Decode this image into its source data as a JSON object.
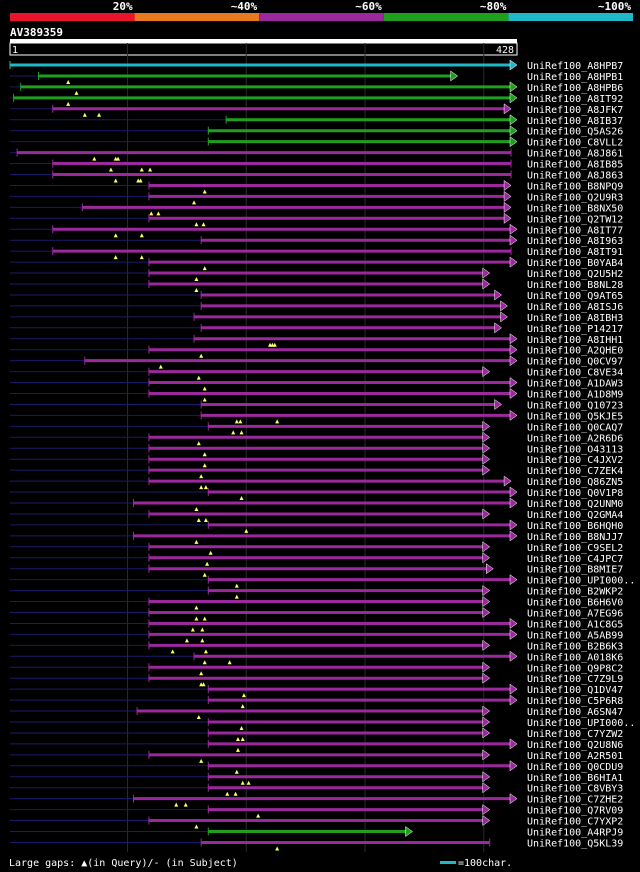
{
  "chart_data": {
    "type": "alignment-overview",
    "query_id": "AV389359",
    "query_start": "1",
    "query_end": "428",
    "query_length": 428,
    "identity_scale": [
      {
        "label": "20%",
        "color": "#e8142a"
      },
      {
        "label": "~40%",
        "color": "#e8791e"
      },
      {
        "label": "~60%",
        "color": "#9c289e"
      },
      {
        "label": "~80%",
        "color": "#1ea01e"
      },
      {
        "label": "~100%",
        "color": "#1eb8c8"
      }
    ],
    "legend": {
      "text": "Large gaps: ▲(in Query)/- (in Subject)",
      "scale_label": "=100char.",
      "scale_chars": 100
    },
    "hits": [
      {
        "name": "UniRef100_A8HPB7",
        "start": 1,
        "end": 428,
        "color": "#1eb8c8",
        "arrow": true,
        "markers": []
      },
      {
        "name": "UniRef100_A8HPB1",
        "start": 25,
        "end": 378,
        "color": "#1ea01e",
        "arrow": true,
        "markers": [
          50
        ]
      },
      {
        "name": "UniRef100_A8HPB6",
        "start": 10,
        "end": 428,
        "color": "#1ea01e",
        "arrow": true,
        "markers": [
          57
        ]
      },
      {
        "name": "UniRef100_A8IT92",
        "start": 4,
        "end": 428,
        "color": "#1ea01e",
        "arrow": true,
        "markers": [
          50
        ]
      },
      {
        "name": "UniRef100_A8JFK7",
        "start": 37,
        "end": 423,
        "color": "#9c289e",
        "arrow": true,
        "markers": [
          64,
          76
        ]
      },
      {
        "name": "UniRef100_A8IB37",
        "start": 183,
        "end": 428,
        "color": "#1ea01e",
        "arrow": true,
        "markers": []
      },
      {
        "name": "UniRef100_Q5AS26",
        "start": 168,
        "end": 428,
        "color": "#1ea01e",
        "arrow": true,
        "markers": []
      },
      {
        "name": "UniRef100_C8VLL2",
        "start": 168,
        "end": 428,
        "color": "#1ea01e",
        "arrow": true,
        "markers": []
      },
      {
        "name": "UniRef100_A8J861",
        "start": 7,
        "end": 423,
        "color": "#9c289e",
        "arrow": false,
        "markers": [
          72,
          90,
          92
        ]
      },
      {
        "name": "UniRef100_A8IB85",
        "start": 37,
        "end": 423,
        "color": "#9c289e",
        "arrow": false,
        "markers": [
          86,
          112,
          119
        ]
      },
      {
        "name": "UniRef100_A8J863",
        "start": 37,
        "end": 423,
        "color": "#9c289e",
        "arrow": false,
        "markers": [
          90,
          109,
          111
        ]
      },
      {
        "name": "UniRef100_B8NPQ9",
        "start": 118,
        "end": 423,
        "color": "#9c289e",
        "arrow": true,
        "markers": [
          165
        ]
      },
      {
        "name": "UniRef100_Q2U9R3",
        "start": 118,
        "end": 423,
        "color": "#9c289e",
        "arrow": true,
        "markers": [
          156
        ]
      },
      {
        "name": "UniRef100_B8NX50",
        "start": 62,
        "end": 423,
        "color": "#9c289e",
        "arrow": true,
        "markers": [
          120,
          126
        ]
      },
      {
        "name": "UniRef100_Q2TW12",
        "start": 118,
        "end": 423,
        "color": "#9c289e",
        "arrow": true,
        "markers": [
          158,
          164
        ]
      },
      {
        "name": "UniRef100_A8IT77",
        "start": 37,
        "end": 428,
        "color": "#9c289e",
        "arrow": true,
        "markers": [
          90,
          112
        ]
      },
      {
        "name": "UniRef100_A8I963",
        "start": 162,
        "end": 428,
        "color": "#9c289e",
        "arrow": true,
        "markers": []
      },
      {
        "name": "UniRef100_A8IT91",
        "start": 37,
        "end": 423,
        "color": "#9c289e",
        "arrow": false,
        "markers": [
          90,
          112
        ]
      },
      {
        "name": "UniRef100_B0YAB4",
        "start": 118,
        "end": 428,
        "color": "#9c289e",
        "arrow": true,
        "markers": [
          165
        ]
      },
      {
        "name": "UniRef100_Q2U5H2",
        "start": 118,
        "end": 405,
        "color": "#9c289e",
        "arrow": true,
        "markers": [
          158
        ]
      },
      {
        "name": "UniRef100_B8NL28",
        "start": 118,
        "end": 405,
        "color": "#9c289e",
        "arrow": true,
        "markers": [
          158
        ]
      },
      {
        "name": "UniRef100_Q9AT65",
        "start": 162,
        "end": 415,
        "color": "#9c289e",
        "arrow": true,
        "markers": []
      },
      {
        "name": "UniRef100_A8ISJ6",
        "start": 162,
        "end": 420,
        "color": "#9c289e",
        "arrow": true,
        "markers": []
      },
      {
        "name": "UniRef100_A8IBH3",
        "start": 156,
        "end": 420,
        "color": "#9c289e",
        "arrow": true,
        "markers": []
      },
      {
        "name": "UniRef100_P14217",
        "start": 162,
        "end": 415,
        "color": "#9c289e",
        "arrow": true,
        "markers": []
      },
      {
        "name": "UniRef100_A8IHH1",
        "start": 156,
        "end": 428,
        "color": "#9c289e",
        "arrow": true,
        "markers": [
          220,
          222,
          224
        ]
      },
      {
        "name": "UniRef100_A2QHE0",
        "start": 118,
        "end": 428,
        "color": "#9c289e",
        "arrow": true,
        "markers": [
          162
        ]
      },
      {
        "name": "UniRef100_Q0CV97",
        "start": 64,
        "end": 428,
        "color": "#9c289e",
        "arrow": true,
        "markers": [
          128
        ]
      },
      {
        "name": "UniRef100_C8VE34",
        "start": 118,
        "end": 405,
        "color": "#9c289e",
        "arrow": true,
        "markers": [
          160
        ]
      },
      {
        "name": "UniRef100_A1DAW3",
        "start": 118,
        "end": 428,
        "color": "#9c289e",
        "arrow": true,
        "markers": [
          165
        ]
      },
      {
        "name": "UniRef100_A1D8M9",
        "start": 118,
        "end": 428,
        "color": "#9c289e",
        "arrow": true,
        "markers": [
          165
        ]
      },
      {
        "name": "UniRef100_Q10723",
        "start": 162,
        "end": 415,
        "color": "#9c289e",
        "arrow": true,
        "markers": []
      },
      {
        "name": "UniRef100_Q5KJE5",
        "start": 162,
        "end": 428,
        "color": "#9c289e",
        "arrow": true,
        "markers": [
          192,
          195,
          226
        ]
      },
      {
        "name": "UniRef100_Q0CAQ7",
        "start": 168,
        "end": 405,
        "color": "#9c289e",
        "arrow": true,
        "markers": [
          189,
          196
        ]
      },
      {
        "name": "UniRef100_A2R6D6",
        "start": 118,
        "end": 405,
        "color": "#9c289e",
        "arrow": true,
        "markers": [
          160
        ]
      },
      {
        "name": "UniRef100_O43113",
        "start": 118,
        "end": 405,
        "color": "#9c289e",
        "arrow": true,
        "markers": [
          165
        ]
      },
      {
        "name": "UniRef100_C4JXV2",
        "start": 118,
        "end": 405,
        "color": "#9c289e",
        "arrow": true,
        "markers": [
          165
        ]
      },
      {
        "name": "UniRef100_C7ZEK4",
        "start": 118,
        "end": 405,
        "color": "#9c289e",
        "arrow": true,
        "markers": [
          162
        ]
      },
      {
        "name": "UniRef100_Q86ZN5",
        "start": 118,
        "end": 423,
        "color": "#9c289e",
        "arrow": true,
        "markers": [
          162,
          166
        ]
      },
      {
        "name": "UniRef100_Q0V1P8",
        "start": 168,
        "end": 428,
        "color": "#9c289e",
        "arrow": true,
        "markers": [
          196
        ]
      },
      {
        "name": "UniRef100_Q2UNM0",
        "start": 105,
        "end": 428,
        "color": "#9c289e",
        "arrow": true,
        "markers": [
          158
        ]
      },
      {
        "name": "UniRef100_Q2GMA4",
        "start": 118,
        "end": 405,
        "color": "#9c289e",
        "arrow": true,
        "markers": [
          160,
          166
        ]
      },
      {
        "name": "UniRef100_B6HQH0",
        "start": 168,
        "end": 428,
        "color": "#9c289e",
        "arrow": true,
        "markers": [
          200
        ]
      },
      {
        "name": "UniRef100_B8NJJ7",
        "start": 105,
        "end": 428,
        "color": "#9c289e",
        "arrow": true,
        "markers": [
          158
        ]
      },
      {
        "name": "UniRef100_C9SEL2",
        "start": 118,
        "end": 405,
        "color": "#9c289e",
        "arrow": true,
        "markers": [
          170
        ]
      },
      {
        "name": "UniRef100_C4JPC7",
        "start": 118,
        "end": 405,
        "color": "#9c289e",
        "arrow": true,
        "markers": [
          167
        ]
      },
      {
        "name": "UniRef100_B8MIE7",
        "start": 118,
        "end": 408,
        "color": "#9c289e",
        "arrow": true,
        "markers": [
          165
        ]
      },
      {
        "name": "UniRef100_UPI000..",
        "start": 168,
        "end": 428,
        "color": "#9c289e",
        "arrow": true,
        "markers": [
          192
        ]
      },
      {
        "name": "UniRef100_B2WKP2",
        "start": 168,
        "end": 405,
        "color": "#9c289e",
        "arrow": true,
        "markers": [
          192
        ]
      },
      {
        "name": "UniRef100_B6H6V0",
        "start": 118,
        "end": 405,
        "color": "#9c289e",
        "arrow": true,
        "markers": [
          158
        ]
      },
      {
        "name": "UniRef100_A7EG96",
        "start": 118,
        "end": 405,
        "color": "#9c289e",
        "arrow": true,
        "markers": [
          158,
          165
        ]
      },
      {
        "name": "UniRef100_A1C8G5",
        "start": 118,
        "end": 428,
        "color": "#9c289e",
        "arrow": true,
        "markers": [
          155,
          163
        ]
      },
      {
        "name": "UniRef100_A5AB99",
        "start": 118,
        "end": 428,
        "color": "#9c289e",
        "arrow": true,
        "markers": [
          150,
          163
        ]
      },
      {
        "name": "UniRef100_B2B6K3",
        "start": 118,
        "end": 405,
        "color": "#9c289e",
        "arrow": true,
        "markers": [
          138,
          166
        ]
      },
      {
        "name": "UniRef100_A018K6",
        "start": 156,
        "end": 428,
        "color": "#9c289e",
        "arrow": true,
        "markers": [
          165,
          186
        ]
      },
      {
        "name": "UniRef100_Q9P8C2",
        "start": 118,
        "end": 405,
        "color": "#9c289e",
        "arrow": true,
        "markers": [
          162
        ]
      },
      {
        "name": "UniRef100_C7Z9L9",
        "start": 118,
        "end": 405,
        "color": "#9c289e",
        "arrow": true,
        "markers": [
          162,
          164
        ]
      },
      {
        "name": "UniRef100_Q1DV47",
        "start": 168,
        "end": 428,
        "color": "#9c289e",
        "arrow": true,
        "markers": [
          198
        ]
      },
      {
        "name": "UniRef100_C5P6R8",
        "start": 168,
        "end": 428,
        "color": "#9c289e",
        "arrow": true,
        "markers": [
          197
        ]
      },
      {
        "name": "UniRef100_A6SN47",
        "start": 108,
        "end": 405,
        "color": "#9c289e",
        "arrow": true,
        "markers": [
          160
        ]
      },
      {
        "name": "UniRef100_UPI000..",
        "start": 168,
        "end": 405,
        "color": "#9c289e",
        "arrow": true,
        "markers": [
          196
        ]
      },
      {
        "name": "UniRef100_C7YZW2",
        "start": 168,
        "end": 405,
        "color": "#9c289e",
        "arrow": true,
        "markers": [
          193,
          197
        ]
      },
      {
        "name": "UniRef100_Q2U8N6",
        "start": 168,
        "end": 428,
        "color": "#9c289e",
        "arrow": true,
        "markers": [
          193
        ]
      },
      {
        "name": "UniRef100_A2R501",
        "start": 118,
        "end": 405,
        "color": "#9c289e",
        "arrow": true,
        "markers": [
          162
        ]
      },
      {
        "name": "UniRef100_Q0CDU9",
        "start": 168,
        "end": 428,
        "color": "#9c289e",
        "arrow": true,
        "markers": [
          192
        ]
      },
      {
        "name": "UniRef100_B6HIA1",
        "start": 168,
        "end": 405,
        "color": "#9c289e",
        "arrow": true,
        "markers": [
          197,
          202
        ]
      },
      {
        "name": "UniRef100_C8VBY3",
        "start": 168,
        "end": 405,
        "color": "#9c289e",
        "arrow": true,
        "markers": [
          184,
          191
        ]
      },
      {
        "name": "UniRef100_C7ZHE2",
        "start": 105,
        "end": 428,
        "color": "#9c289e",
        "arrow": true,
        "markers": [
          141,
          149
        ]
      },
      {
        "name": "UniRef100_Q7RV09",
        "start": 168,
        "end": 405,
        "color": "#9c289e",
        "arrow": true,
        "markers": [
          210
        ]
      },
      {
        "name": "UniRef100_C7YXP2",
        "start": 118,
        "end": 405,
        "color": "#9c289e",
        "arrow": true,
        "markers": [
          158
        ]
      },
      {
        "name": "UniRef100_A4RPJ9",
        "start": 168,
        "end": 340,
        "color": "#1ea01e",
        "arrow": true,
        "markers": []
      },
      {
        "name": "UniRef100_Q5KL39",
        "start": 162,
        "end": 405,
        "color": "#9c289e",
        "arrow": false,
        "markers": [
          226
        ]
      }
    ]
  }
}
